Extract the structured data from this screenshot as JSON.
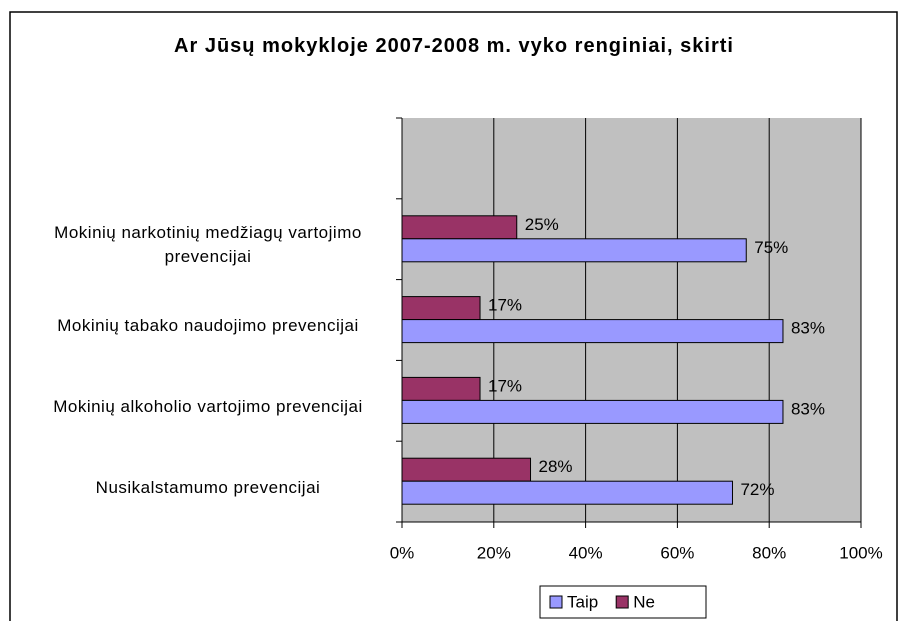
{
  "chart_data": {
    "type": "hbar",
    "title": "Ar Jūsų mokykloje 2007-2008 m. vyko renginiai, skirti",
    "categories": [
      null,
      "Mokinių narkotinių medžiagų vartojimo prevencijai",
      "Mokinių tabako naudojimo prevencijai",
      "Mokinių alkoholio vartojimo prevencijai",
      "Nusikalstamumo prevencijai"
    ],
    "series": [
      {
        "name": "Taip",
        "color": "#9999ff",
        "values": [
          null,
          75,
          83,
          83,
          72
        ],
        "value_labels": [
          null,
          "75%",
          "83%",
          "83%",
          "72%"
        ]
      },
      {
        "name": "Ne",
        "color": "#993366",
        "values": [
          null,
          25,
          17,
          17,
          28
        ],
        "value_labels": [
          null,
          "25%",
          "17%",
          "17%",
          "28%"
        ]
      }
    ],
    "xlim": [
      0,
      100
    ],
    "xticks": [
      {
        "value": 0,
        "label": "0%"
      },
      {
        "value": 20,
        "label": "20%"
      },
      {
        "value": 40,
        "label": "40%"
      },
      {
        "value": 60,
        "label": "60%"
      },
      {
        "value": 80,
        "label": "80%"
      },
      {
        "value": 100,
        "label": "100%"
      }
    ],
    "grid": true,
    "legend": "bottom"
  }
}
